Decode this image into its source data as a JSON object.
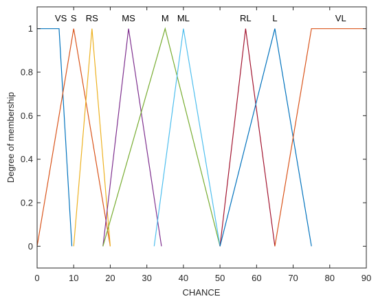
{
  "chart_data": {
    "type": "line",
    "title": "",
    "xlabel": "CHANCE",
    "ylabel": "Degree of membership",
    "xlim": [
      0,
      90
    ],
    "ylim": [
      -0.1,
      1.1
    ],
    "xticks": [
      "0",
      "10",
      "20",
      "30",
      "40",
      "50",
      "60",
      "70",
      "80",
      "90"
    ],
    "yticks": [
      "0",
      "0.2",
      "0.4",
      "0.6",
      "0.8",
      "1"
    ],
    "grid": false,
    "series": [
      {
        "name": "VS",
        "label_x": 6.5,
        "color": "#0072BD",
        "x": [
          0,
          6,
          9.5
        ],
        "y": [
          1,
          1,
          0
        ]
      },
      {
        "name": "S",
        "label_x": 10,
        "color": "#D95319",
        "x": [
          0,
          10,
          20
        ],
        "y": [
          0,
          1,
          0
        ]
      },
      {
        "name": "RS",
        "label_x": 15,
        "color": "#EDB120",
        "x": [
          10,
          15,
          20
        ],
        "y": [
          0,
          1,
          0
        ]
      },
      {
        "name": "MS",
        "label_x": 25,
        "color": "#7E2F8E",
        "x": [
          18,
          25,
          34
        ],
        "y": [
          0,
          1,
          0
        ]
      },
      {
        "name": "M",
        "label_x": 35,
        "color": "#77AC30",
        "x": [
          18,
          35,
          50
        ],
        "y": [
          0,
          1,
          0
        ]
      },
      {
        "name": "ML",
        "label_x": 40,
        "color": "#4DBEEE",
        "x": [
          32,
          40,
          50
        ],
        "y": [
          0,
          1,
          0
        ]
      },
      {
        "name": "RL",
        "label_x": 57,
        "color": "#A2142F",
        "x": [
          50,
          57,
          65
        ],
        "y": [
          0,
          1,
          0
        ]
      },
      {
        "name": "L",
        "label_x": 65,
        "color": "#0072BD",
        "x": [
          50,
          65,
          75
        ],
        "y": [
          0,
          1,
          0
        ]
      },
      {
        "name": "VL",
        "label_x": 83,
        "color": "#D95319",
        "x": [
          65,
          75,
          90
        ],
        "y": [
          0,
          1,
          1
        ]
      }
    ]
  }
}
